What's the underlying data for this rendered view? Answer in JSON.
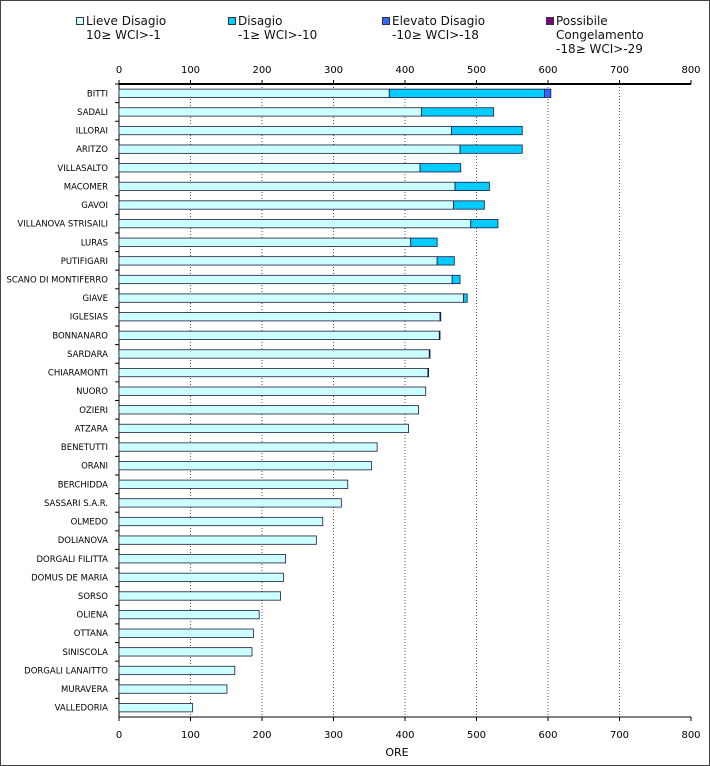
{
  "chart_data": {
    "type": "bar",
    "orientation": "horizontal",
    "stacked": true,
    "title": "",
    "xlabel": "ORE",
    "ylabel": "",
    "xlim": [
      0,
      800
    ],
    "xticks": [
      "0",
      "100",
      "200",
      "300",
      "400",
      "500",
      "600",
      "700",
      "800"
    ],
    "grid": "vertical dotted",
    "legend": [
      {
        "name": "Lieve Disagio",
        "range": "10≥ WCI>-1",
        "color": "#ccffff"
      },
      {
        "name": "Disagio",
        "range": "-1≥ WCI>-10",
        "color": "#00ccff"
      },
      {
        "name": "Elevato Disagio",
        "range": "-10≥ WCI>-18",
        "color": "#3366ff"
      },
      {
        "name": "Possibile Congelamento",
        "range": "-18≥ WCI>-29",
        "color": "#800080",
        "label_lines": [
          "Possibile",
          "Congelamento",
          "-18≥ WCI>-29"
        ]
      }
    ],
    "categories": [
      "BITTI",
      "SADALI",
      "ILLORAI",
      "ARITZO",
      "VILLASALTO",
      "MACOMER",
      "GAVOI",
      "VILLANOVA STRISAILI",
      "LURAS",
      "PUTIFIGARI",
      "SCANO DI MONTIFERRO",
      "GIAVE",
      "IGLESIAS",
      "BONNANARO",
      "SARDARA",
      "CHIARAMONTI",
      "NUORO",
      "OZIERI",
      "ATZARA",
      "BENETUTTI",
      "ORANI",
      "BERCHIDDA",
      "SASSARI S.A.R.",
      "OLMEDO",
      "DOLIANOVA",
      "DORGALI FILITTA",
      "DOMUS DE MARIA",
      "SORSO",
      "OLIENA",
      "OTTANA",
      "SINISCOLA",
      "DORGALI LANAITTO",
      "MURAVERA",
      "VALLEDORIA"
    ],
    "series": [
      {
        "name": "Lieve Disagio",
        "values": [
          378,
          423,
          465,
          477,
          421,
          470,
          468,
          492,
          408,
          445,
          466,
          482,
          449,
          448,
          434,
          432,
          429,
          419,
          405,
          361,
          353,
          320,
          311,
          285,
          276,
          233,
          230,
          226,
          196,
          188,
          186,
          162,
          151,
          103
        ]
      },
      {
        "name": "Disagio",
        "values": [
          217,
          101,
          99,
          87,
          57,
          48,
          43,
          38,
          37,
          24,
          11,
          5,
          1,
          1,
          1,
          1,
          0,
          0,
          0,
          0,
          0,
          0,
          0,
          0,
          0,
          0,
          0,
          0,
          0,
          0,
          0,
          0,
          0,
          0
        ]
      },
      {
        "name": "Elevato Disagio",
        "values": [
          9,
          0,
          0,
          0,
          0,
          0,
          0,
          0,
          0,
          0,
          0,
          0,
          0,
          0,
          0,
          0,
          0,
          0,
          0,
          0,
          0,
          0,
          0,
          0,
          0,
          0,
          0,
          0,
          0,
          0,
          0,
          0,
          0,
          0
        ]
      },
      {
        "name": "Possibile Congelamento",
        "values": [
          0,
          0,
          0,
          0,
          0,
          0,
          0,
          0,
          0,
          0,
          0,
          0,
          0,
          0,
          0,
          0,
          0,
          0,
          0,
          0,
          0,
          0,
          0,
          0,
          0,
          0,
          0,
          0,
          0,
          0,
          0,
          0,
          0,
          0
        ]
      }
    ]
  }
}
